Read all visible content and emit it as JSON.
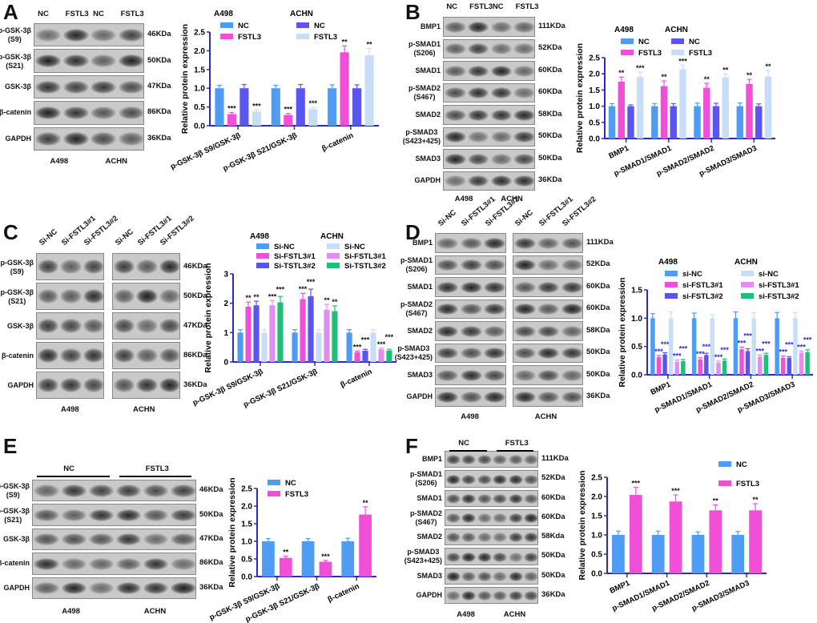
{
  "colors": {
    "a498_nc": "#4f9cf5",
    "a498_t1": "#f24fd8",
    "a498_t2": "#5a55ef",
    "achn_nc": "#c8def8",
    "achn_t1": "#e08ff0",
    "achn_t2": "#1fbf7a",
    "axis": "#2a2ac0"
  },
  "panels": [
    {
      "id": "A",
      "letter": "A",
      "blot": {
        "lanes": [
          "NC",
          "FSTL3",
          "NC",
          "FSTL3"
        ],
        "groups": [],
        "split": false,
        "rows": [
          {
            "label": "p-GSK-3β",
            "sub": "(S9)",
            "kda": "46KDa"
          },
          {
            "label": "p-GSK-3β",
            "sub": "(S21)",
            "kda": "50KDa"
          },
          {
            "label": "GSK-3β",
            "sub": "",
            "kda": "47KDa"
          },
          {
            "label": "β-catenin",
            "sub": "",
            "kda": "86KDa"
          },
          {
            "label": "GAPDH",
            "sub": "",
            "kda": "36KDa"
          }
        ],
        "cells": [
          "A498",
          "ACHN"
        ]
      },
      "chart": {
        "type": "bar",
        "ylabel": "Relative protein expression",
        "ylim": [
          0,
          2.5
        ],
        "ticks": [
          "0.0",
          "0.5",
          "1.0",
          "1.5",
          "2.0",
          "2.5"
        ],
        "categories": [
          "p-GSK-3β S9/GSK-3β",
          "p-GSK-3β S21/GSK-3β",
          "β-catenin"
        ],
        "legend_groups": [
          "A498",
          "ACHN"
        ],
        "series": [
          {
            "group": "A498",
            "name": "NC",
            "color": "a498_nc",
            "values": [
              1,
              1,
              1
            ],
            "err": [
              0.08,
              0.08,
              0.09
            ],
            "sig": [
              "",
              "",
              ""
            ]
          },
          {
            "group": "A498",
            "name": "FSTL3",
            "color": "a498_t1",
            "values": [
              0.31,
              0.29,
              1.96
            ],
            "err": [
              0.04,
              0.04,
              0.17
            ],
            "sig": [
              "***",
              "***",
              "**"
            ]
          },
          {
            "group": "ACHN",
            "name": "NC",
            "color": "a498_t2",
            "values": [
              1,
              1,
              1
            ],
            "err": [
              0.1,
              0.1,
              0.09
            ],
            "sig": [
              "",
              "",
              ""
            ]
          },
          {
            "group": "ACHN",
            "name": "FSTL3",
            "color": "achn_nc",
            "values": [
              0.38,
              0.44,
              1.88
            ],
            "err": [
              0.04,
              0.05,
              0.18
            ],
            "sig": [
              "***",
              "***",
              "**"
            ]
          }
        ]
      }
    },
    {
      "id": "B",
      "letter": "B",
      "blot": {
        "lanes": [
          "NC",
          "FSTL3",
          "NC",
          "FSTL3"
        ],
        "groups": [],
        "split": false,
        "rows": [
          {
            "label": "BMP1",
            "sub": "",
            "kda": "111KDa"
          },
          {
            "label": "p-SMAD1",
            "sub": "(S206)",
            "kda": "52KDa"
          },
          {
            "label": "SMAD1",
            "sub": "",
            "kda": "60KDa"
          },
          {
            "label": "p-SMAD2",
            "sub": "(S467)",
            "kda": "60KDa"
          },
          {
            "label": "SMAD2",
            "sub": "",
            "kda": "58KDa"
          },
          {
            "label": "p-SMAD3",
            "sub": "(S423+425)",
            "kda": "50KDa"
          },
          {
            "label": "SMAD3",
            "sub": "",
            "kda": "50KDa"
          },
          {
            "label": "GAPDH",
            "sub": "",
            "kda": "36KDa"
          }
        ],
        "cells": [
          "A498",
          "ACHN"
        ]
      },
      "chart": {
        "type": "bar",
        "ylabel": "Relative protein expression",
        "ylim": [
          0,
          2.5
        ],
        "ticks": [
          "0.0",
          "0.5",
          "1.0",
          "1.5",
          "2.0",
          "2.5"
        ],
        "categories": [
          "BMP1",
          "p-SMAD1/SMAD1",
          "p-SMAD2/SMAD2",
          "p-SMAD3/SMAD3"
        ],
        "legend_groups": [
          "A498",
          "ACHN"
        ],
        "series": [
          {
            "group": "A498",
            "name": "NC",
            "color": "a498_nc",
            "values": [
              1,
              1,
              1,
              1
            ],
            "err": [
              0.08,
              0.08,
              0.1,
              0.1
            ],
            "sig": [
              "",
              "",
              "",
              ""
            ]
          },
          {
            "group": "A498",
            "name": "FSTL3",
            "color": "a498_t1",
            "values": [
              1.76,
              1.62,
              1.57,
              1.69
            ],
            "err": [
              0.14,
              0.16,
              0.14,
              0.14
            ],
            "sig": [
              "**",
              "**",
              "**",
              "**"
            ]
          },
          {
            "group": "ACHN",
            "name": "NC",
            "color": "a498_t2",
            "values": [
              1,
              1,
              1,
              1
            ],
            "err": [
              0.04,
              0.08,
              0.09,
              0.07
            ],
            "sig": [
              "",
              "",
              "",
              ""
            ]
          },
          {
            "group": "ACHN",
            "name": "FSTL3",
            "color": "achn_nc",
            "values": [
              1.9,
              2.14,
              1.89,
              1.92
            ],
            "err": [
              0.15,
              0.13,
              0.1,
              0.18
            ],
            "sig": [
              "***",
              "***",
              "**",
              "**"
            ]
          }
        ]
      }
    },
    {
      "id": "C",
      "letter": "C",
      "blot": {
        "lanes": [
          "Si-NC",
          "Si-FSTL3#1",
          "Si-FSTL3#2",
          "Si-NC",
          "Si-FSTL3#1",
          "Si-FSTL3#2"
        ],
        "groups": [],
        "split": true,
        "rows": [
          {
            "label": "p-GSK-3β",
            "sub": "(S9)",
            "kda": "46KDa"
          },
          {
            "label": "p-GSK-3β",
            "sub": "(S21)",
            "kda": "50KDa"
          },
          {
            "label": "GSK-3β",
            "sub": "",
            "kda": "47KDa"
          },
          {
            "label": "β-catenin",
            "sub": "",
            "kda": "86KDa"
          },
          {
            "label": "GAPDH",
            "sub": "",
            "kda": "36KDa"
          }
        ],
        "cells": [
          "A498",
          "ACHN"
        ]
      },
      "chart": {
        "type": "bar",
        "ylabel": "Relative protein expression",
        "ylim": [
          0,
          3
        ],
        "ticks": [
          "0",
          "1",
          "2",
          "3"
        ],
        "categories": [
          "p-GSK-3β S9/GSK-3β",
          "p-GSK-3β S21/GSK-3β",
          "β-catenin"
        ],
        "legend_groups": [
          "A498",
          "ACHN"
        ],
        "series": [
          {
            "group": "A498",
            "name": "Si-NC",
            "color": "a498_nc",
            "values": [
              1,
              1,
              1
            ],
            "err": [
              0.1,
              0.1,
              0.1
            ],
            "sig": [
              "",
              "",
              ""
            ]
          },
          {
            "group": "A498",
            "name": "Si-FSTL3#1",
            "color": "a498_t1",
            "values": [
              1.88,
              2.14,
              0.33
            ],
            "err": [
              0.16,
              0.2,
              0.04
            ],
            "sig": [
              "**",
              "***",
              "***"
            ]
          },
          {
            "group": "A498",
            "name": "Si-TSTL3#2",
            "color": "a498_t2",
            "values": [
              1.93,
              2.24,
              0.38
            ],
            "err": [
              0.14,
              0.24,
              0.05
            ],
            "sig": [
              "**",
              "***",
              "***"
            ]
          },
          {
            "group": "ACHN",
            "name": "Si-NC",
            "color": "achn_nc",
            "values": [
              1,
              1,
              1
            ],
            "err": [
              0.1,
              0.1,
              0.1
            ],
            "sig": [
              "",
              "",
              ""
            ]
          },
          {
            "group": "ACHN",
            "name": "Si-FSTL3#1",
            "color": "achn_t1",
            "values": [
              1.93,
              1.78,
              0.43
            ],
            "err": [
              0.16,
              0.18,
              0.04
            ],
            "sig": [
              "***",
              "**",
              "***"
            ]
          },
          {
            "group": "ACHN",
            "name": "Si-TSTL3#2",
            "color": "achn_t2",
            "values": [
              2.03,
              1.73,
              0.39
            ],
            "err": [
              0.2,
              0.18,
              0.04
            ],
            "sig": [
              "***",
              "**",
              "***"
            ]
          }
        ]
      }
    },
    {
      "id": "D",
      "letter": "D",
      "blot": {
        "lanes": [
          "Si-NC",
          "Si-FSTL3#1",
          "Si-FSTL3#2",
          "Si-NC",
          "Si-FSTL3#1",
          "Si-FSTL3#2"
        ],
        "groups": [],
        "split": true,
        "rows": [
          {
            "label": "BMP1",
            "sub": "",
            "kda": "111KDa"
          },
          {
            "label": "p-SMAD1",
            "sub": "(S206)",
            "kda": "52KDa"
          },
          {
            "label": "SMAD1",
            "sub": "",
            "kda": "60KDa"
          },
          {
            "label": "p-SMAD2",
            "sub": "(S467)",
            "kda": "60KDa"
          },
          {
            "label": "SMAD2",
            "sub": "",
            "kda": "58KDa"
          },
          {
            "label": "p-SMAD3",
            "sub": "(S423+425)",
            "kda": "50KDa"
          },
          {
            "label": "SMAD3",
            "sub": "",
            "kda": "50KDa"
          },
          {
            "label": "GAPDH",
            "sub": "",
            "kda": "36KDa"
          }
        ],
        "cells": [
          "A498",
          "ACHN"
        ]
      },
      "chart": {
        "type": "bar",
        "ylabel": "Relative protein expression",
        "ylim": [
          0,
          1.5
        ],
        "ticks": [
          "0.0",
          "0.5",
          "1.0",
          "1.5"
        ],
        "sig_color": "#2a2ad0",
        "categories": [
          "BMP1",
          "p-SMAD1/SMAD1",
          "p-SMAD2/SMAD2",
          "p-SMAD3/SMAD3"
        ],
        "legend_groups": [
          "A498",
          "ACHN"
        ],
        "series": [
          {
            "group": "A498",
            "name": "si-NC",
            "color": "a498_nc",
            "values": [
              1,
              1,
              1,
              1
            ],
            "err": [
              0.08,
              0.09,
              0.11,
              0.1
            ],
            "sig": [
              "",
              "",
              "",
              ""
            ]
          },
          {
            "group": "A498",
            "name": "si-FSTL3#1",
            "color": "a498_t1",
            "values": [
              0.31,
              0.27,
              0.45,
              0.3
            ],
            "err": [
              0.03,
              0.03,
              0.04,
              0.03
            ],
            "sig": [
              "***",
              "***",
              "***",
              "***"
            ]
          },
          {
            "group": "A498",
            "name": "si-FSTL3#2",
            "color": "a498_t2",
            "values": [
              0.36,
              0.35,
              0.42,
              0.3
            ],
            "err": [
              0.03,
              0.03,
              0.04,
              0.02
            ],
            "sig": [
              "***",
              "***",
              "***",
              "***"
            ]
          },
          {
            "group": "ACHN",
            "name": "si-NC",
            "color": "achn_nc",
            "values": [
              1,
              1,
              1,
              1
            ],
            "err": [
              0.11,
              0.06,
              0.1,
              0.1
            ],
            "sig": [
              "",
              "",
              "",
              ""
            ]
          },
          {
            "group": "ACHN",
            "name": "si-FSTL3#1",
            "color": "achn_t1",
            "values": [
              0.23,
              0.21,
              0.32,
              0.39
            ],
            "err": [
              0.03,
              0.03,
              0.03,
              0.03
            ],
            "sig": [
              "***",
              "***",
              "***",
              "***"
            ]
          },
          {
            "group": "ACHN",
            "name": "si-FSTL3#2",
            "color": "achn_t2",
            "values": [
              0.24,
              0.25,
              0.35,
              0.4
            ],
            "err": [
              0.03,
              0.03,
              0.03,
              0.04
            ],
            "sig": [
              "***",
              "***",
              "***",
              "***"
            ]
          }
        ]
      }
    },
    {
      "id": "E",
      "letter": "E",
      "blot": {
        "lanes": [],
        "groups": [
          "NC",
          "FSTL3"
        ],
        "lane_count": 6,
        "split": false,
        "rows": [
          {
            "label": "p-GSK-3β",
            "sub": "(S9)",
            "kda": "46KDa"
          },
          {
            "label": "p-GSK-3β",
            "sub": "(S21)",
            "kda": "50KDa"
          },
          {
            "label": "GSK-3β",
            "sub": "",
            "kda": "47KDa"
          },
          {
            "label": "β-catenin",
            "sub": "",
            "kda": "86KDa"
          },
          {
            "label": "GAPDH",
            "sub": "",
            "kda": "36KDa"
          }
        ],
        "cells": [
          "A498",
          "ACHN"
        ]
      },
      "chart": {
        "type": "bar",
        "ylabel": "Relative protein expression",
        "ylim": [
          0,
          2.5
        ],
        "ticks": [
          "0.0",
          "0.5",
          "1.0",
          "1.5",
          "2.0",
          "2.5"
        ],
        "categories": [
          "p-GSK-3β S9/GSK-3β",
          "p-GSK-3β S21/GSK-3β",
          "β-catenin"
        ],
        "legend_groups": [],
        "series": [
          {
            "group": "",
            "name": "NC",
            "color": "a498_nc",
            "values": [
              1,
              1,
              1
            ],
            "err": [
              0.08,
              0.08,
              0.09
            ],
            "sig": [
              "",
              "",
              ""
            ]
          },
          {
            "group": "",
            "name": "FSTL3",
            "color": "a498_t1",
            "values": [
              0.53,
              0.42,
              1.76
            ],
            "err": [
              0.05,
              0.04,
              0.22
            ],
            "sig": [
              "**",
              "***",
              "**"
            ]
          }
        ]
      }
    },
    {
      "id": "F",
      "letter": "F",
      "blot": {
        "lanes": [],
        "groups": [
          "NC",
          "FSTL3"
        ],
        "lane_count": 6,
        "split": false,
        "rows": [
          {
            "label": "BMP1",
            "sub": "",
            "kda": "111KDa"
          },
          {
            "label": "p-SMAD1",
            "sub": "(S206)",
            "kda": "52KDa"
          },
          {
            "label": "SMAD1",
            "sub": "",
            "kda": "60KDa"
          },
          {
            "label": "p-SMAD2",
            "sub": "(S467)",
            "kda": "60KDa"
          },
          {
            "label": "SMAD2",
            "sub": "",
            "kda": "58Kda"
          },
          {
            "label": "p-SMAD3",
            "sub": "(S423+425)",
            "kda": "50KDa"
          },
          {
            "label": "SMAD3",
            "sub": "",
            "kda": "50KDa"
          },
          {
            "label": "GAPDH",
            "sub": "",
            "kda": "36KDa"
          }
        ],
        "cells": [
          "A498",
          "ACHN"
        ]
      },
      "chart": {
        "type": "bar",
        "ylabel": "Relative protein expression",
        "ylim": [
          0,
          2.5
        ],
        "ticks": [
          "0.0",
          "0.5",
          "1.0",
          "1.5",
          "2.0",
          "2.5"
        ],
        "categories": [
          "BMP1",
          "p-SMAD1/SMAD1",
          "p-SMAD2/SMAD2",
          "p-SMAD3/SMAD3"
        ],
        "legend_groups": [],
        "series": [
          {
            "group": "",
            "name": "NC",
            "color": "a498_nc",
            "values": [
              1,
              1,
              1,
              1
            ],
            "err": [
              0.1,
              0.1,
              0.08,
              0.09
            ],
            "sig": [
              "",
              "",
              "",
              ""
            ]
          },
          {
            "group": "",
            "name": "FSTL3",
            "color": "a498_t1",
            "values": [
              2.04,
              1.87,
              1.64,
              1.64
            ],
            "err": [
              0.2,
              0.17,
              0.14,
              0.17
            ],
            "sig": [
              "***",
              "***",
              "**",
              "**"
            ]
          }
        ]
      }
    }
  ]
}
